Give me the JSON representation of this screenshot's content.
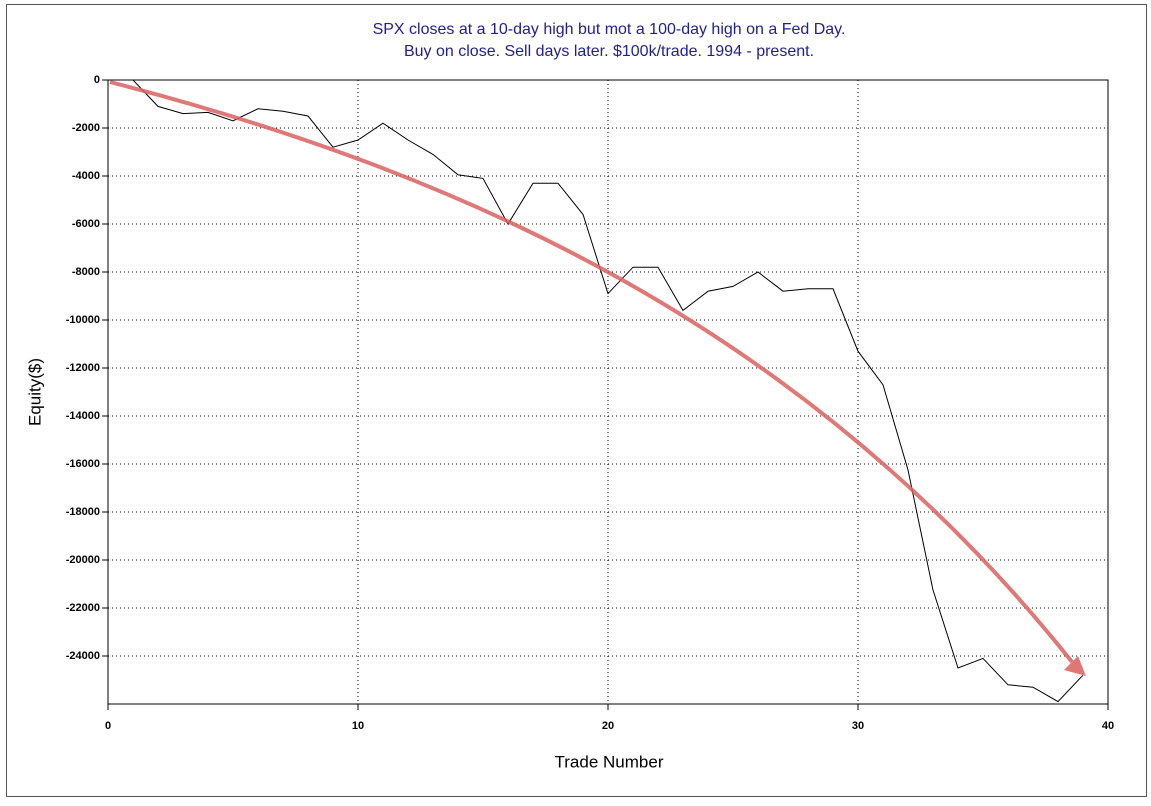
{
  "chart_data": {
    "type": "line",
    "title": "SPX closes at a 10-day high but mot a 100-day high on a Fed Day.",
    "subtitle": "Buy on close. Sell  days later. $100k/trade. 1994 - present.",
    "x_label": "Trade Number",
    "y_label": "Equity($)",
    "x": [
      0,
      1,
      2,
      3,
      4,
      5,
      6,
      7,
      8,
      9,
      10,
      11,
      12,
      13,
      14,
      15,
      16,
      17,
      18,
      19,
      20,
      21,
      22,
      23,
      24,
      25,
      26,
      27,
      28,
      29,
      30,
      31,
      32,
      33,
      34,
      35,
      36,
      37,
      38,
      39
    ],
    "series": [
      {
        "name": "Equity",
        "color": "#000000",
        "values": [
          0,
          0,
          -1100,
          -1400,
          -1350,
          -1700,
          -1200,
          -1300,
          -1500,
          -2800,
          -2500,
          -1800,
          -2500,
          -3100,
          -3950,
          -4100,
          -6000,
          -4300,
          -4300,
          -5600,
          -8900,
          -7800,
          -7800,
          -9600,
          -8800,
          -8600,
          -8000,
          -8800,
          -8700,
          -8700,
          -11300,
          -12700,
          -16250,
          -21250,
          -24500,
          -24100,
          -25200,
          -25300,
          -25900,
          -24800
        ]
      }
    ],
    "xlim": [
      0,
      40
    ],
    "xticks": [
      0,
      10,
      20,
      30,
      40
    ],
    "ylim": [
      -26000,
      0
    ],
    "yticks": [
      0,
      -2000,
      -4000,
      -6000,
      -8000,
      -10000,
      -12000,
      -14000,
      -16000,
      -18000,
      -20000,
      -22000,
      -24000
    ],
    "grid": true
  }
}
